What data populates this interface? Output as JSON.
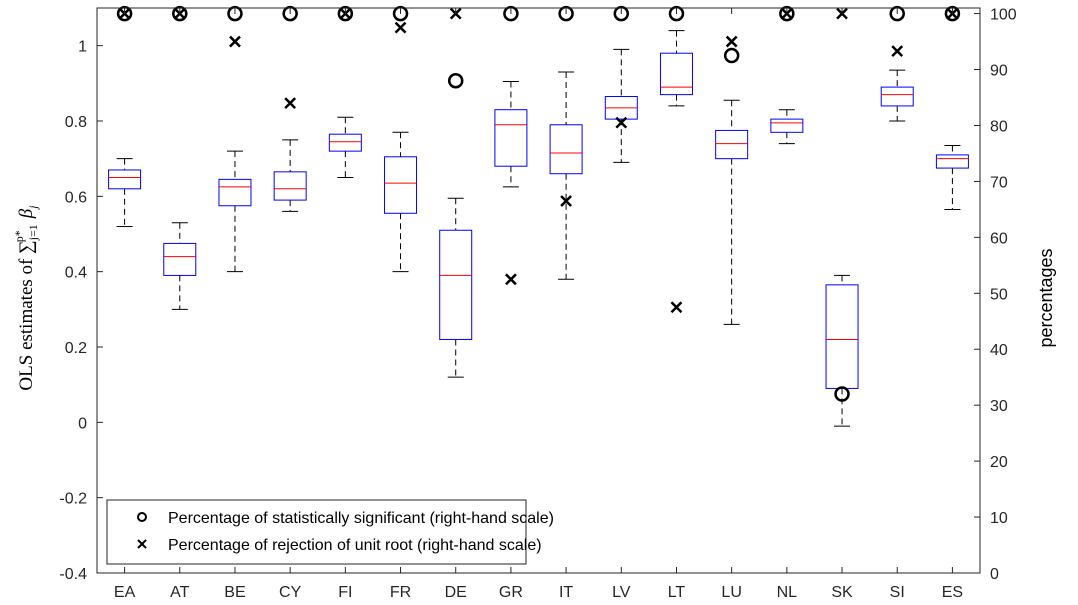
{
  "chart_data": {
    "type": "box",
    "categories": [
      "EA",
      "AT",
      "BE",
      "CY",
      "FI",
      "FR",
      "DE",
      "GR",
      "IT",
      "LV",
      "LT",
      "LU",
      "NL",
      "SK",
      "SI",
      "ES"
    ],
    "ylabel_left": "OLS estimates of ∑_{j=1}^{p*} β_j",
    "ylabel_right": "percentages",
    "ylim_left": [
      -0.4,
      1.1
    ],
    "ylim_right": [
      0,
      101
    ],
    "yticks_left": [
      "-0.4",
      "-0.2",
      "0",
      "0.2",
      "0.4",
      "0.6",
      "0.8",
      "1"
    ],
    "yticks_right": [
      "0",
      "10",
      "20",
      "30",
      "40",
      "50",
      "60",
      "70",
      "80",
      "90",
      "100"
    ],
    "grid": false,
    "legend_position": "bottom-left",
    "boxes": [
      {
        "category": "EA",
        "whisker_low": 0.52,
        "q1": 0.62,
        "median": 0.65,
        "q3": 0.67,
        "whisker_high": 0.7
      },
      {
        "category": "AT",
        "whisker_low": 0.3,
        "q1": 0.39,
        "median": 0.44,
        "q3": 0.475,
        "whisker_high": 0.53
      },
      {
        "category": "BE",
        "whisker_low": 0.4,
        "q1": 0.575,
        "median": 0.625,
        "q3": 0.645,
        "whisker_high": 0.72
      },
      {
        "category": "CY",
        "whisker_low": 0.56,
        "q1": 0.59,
        "median": 0.62,
        "q3": 0.665,
        "whisker_high": 0.75
      },
      {
        "category": "FI",
        "whisker_low": 0.65,
        "q1": 0.72,
        "median": 0.745,
        "q3": 0.765,
        "whisker_high": 0.81
      },
      {
        "category": "FR",
        "whisker_low": 0.4,
        "q1": 0.555,
        "median": 0.635,
        "q3": 0.705,
        "whisker_high": 0.77
      },
      {
        "category": "DE",
        "whisker_low": 0.12,
        "q1": 0.22,
        "median": 0.39,
        "q3": 0.51,
        "whisker_high": 0.595
      },
      {
        "category": "GR",
        "whisker_low": 0.625,
        "q1": 0.68,
        "median": 0.79,
        "q3": 0.83,
        "whisker_high": 0.905
      },
      {
        "category": "IT",
        "whisker_low": 0.38,
        "q1": 0.66,
        "median": 0.715,
        "q3": 0.79,
        "whisker_high": 0.93
      },
      {
        "category": "LV",
        "whisker_low": 0.69,
        "q1": 0.805,
        "median": 0.835,
        "q3": 0.865,
        "whisker_high": 0.99
      },
      {
        "category": "LT",
        "whisker_low": 0.84,
        "q1": 0.87,
        "median": 0.89,
        "q3": 0.98,
        "whisker_high": 1.04
      },
      {
        "category": "LU",
        "whisker_low": 0.26,
        "q1": 0.7,
        "median": 0.74,
        "q3": 0.775,
        "whisker_high": 0.855
      },
      {
        "category": "NL",
        "whisker_low": 0.74,
        "q1": 0.77,
        "median": 0.795,
        "q3": 0.805,
        "whisker_high": 0.83
      },
      {
        "category": "SK",
        "whisker_low": -0.01,
        "q1": 0.09,
        "median": 0.22,
        "q3": 0.365,
        "whisker_high": 0.39
      },
      {
        "category": "SI",
        "whisker_low": 0.8,
        "q1": 0.84,
        "median": 0.87,
        "q3": 0.89,
        "whisker_high": 0.935
      },
      {
        "category": "ES",
        "whisker_low": 0.565,
        "q1": 0.675,
        "median": 0.7,
        "q3": 0.71,
        "whisker_high": 0.735
      }
    ],
    "series": [
      {
        "name": "Percentage of statistically significant (right-hand scale)",
        "marker": "circle",
        "values": [
          100,
          100,
          100,
          100,
          100,
          100,
          88,
          100,
          100,
          100,
          100,
          92.5,
          100,
          32,
          100,
          100
        ]
      },
      {
        "name": "Percentage of rejection of unit root (right-hand scale)",
        "marker": "x",
        "values": [
          100,
          100,
          95,
          84,
          100,
          97.5,
          100,
          52.5,
          66.5,
          80.5,
          47.5,
          95,
          100,
          100,
          93.3,
          100
        ]
      }
    ],
    "colors": {
      "box": "#0000ff",
      "median": "#ff0000",
      "whisker": "#000000",
      "marker": "#000000",
      "axis": "#262626"
    }
  }
}
